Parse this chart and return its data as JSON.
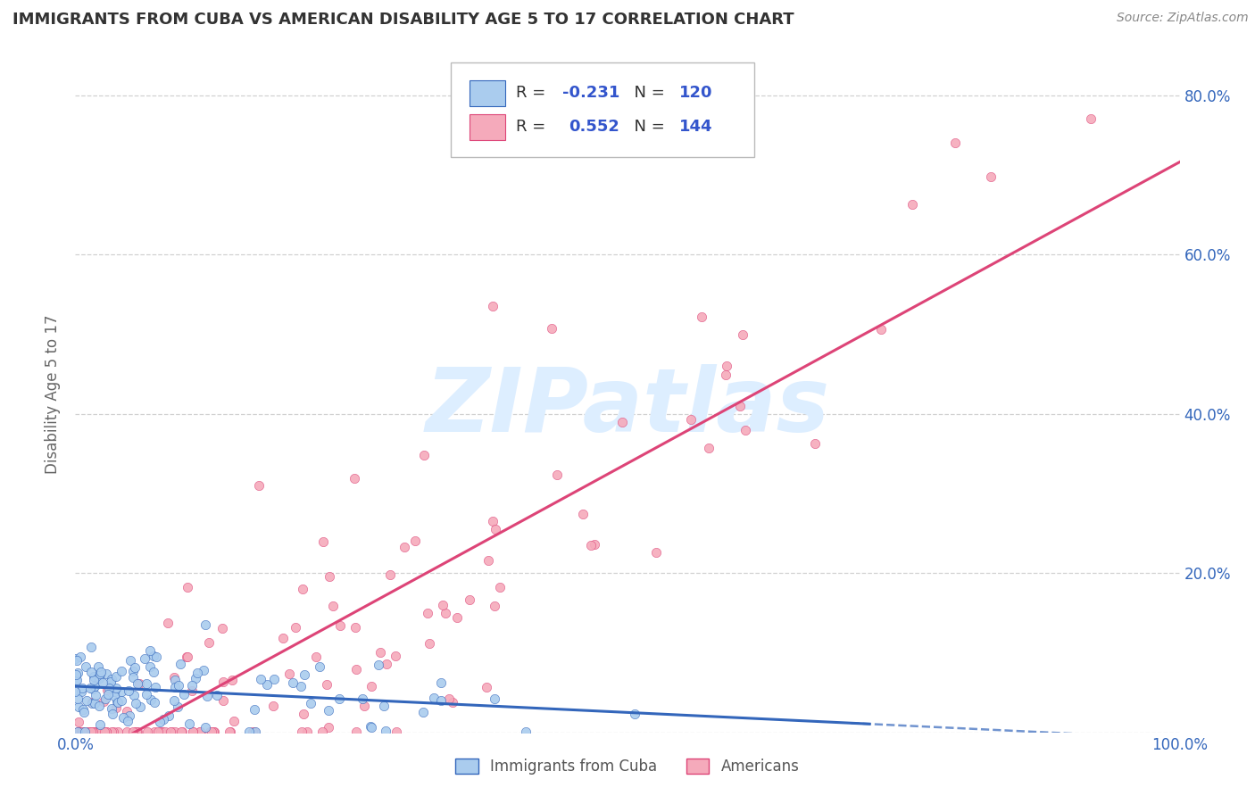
{
  "title": "IMMIGRANTS FROM CUBA VS AMERICAN DISABILITY AGE 5 TO 17 CORRELATION CHART",
  "source": "Source: ZipAtlas.com",
  "ylabel": "Disability Age 5 to 17",
  "legend_label_1": "Immigrants from Cuba",
  "legend_label_2": "Americans",
  "r1": -0.231,
  "n1": 120,
  "r2": 0.552,
  "n2": 144,
  "color_cuba": "#aaccee",
  "color_americans": "#f5aabb",
  "trendline_color_cuba": "#3366bb",
  "trendline_color_americans": "#dd4477",
  "xlim": [
    0,
    1
  ],
  "ylim": [
    0,
    0.85
  ],
  "y_ticks": [
    0.0,
    0.2,
    0.4,
    0.6,
    0.8
  ],
  "right_y_tick_labels": [
    "20.0%",
    "40.0%",
    "60.0%",
    "80.0%"
  ],
  "right_y_ticks": [
    0.2,
    0.4,
    0.6,
    0.8
  ],
  "grid_color": "#cccccc",
  "background_color": "#ffffff",
  "title_color": "#333333",
  "axis_label_color": "#666666",
  "tick_color": "#3366bb",
  "watermark_text": "ZIPatlas",
  "watermark_color": "#ddeeff",
  "seed_cuba": 7,
  "seed_americans": 99
}
